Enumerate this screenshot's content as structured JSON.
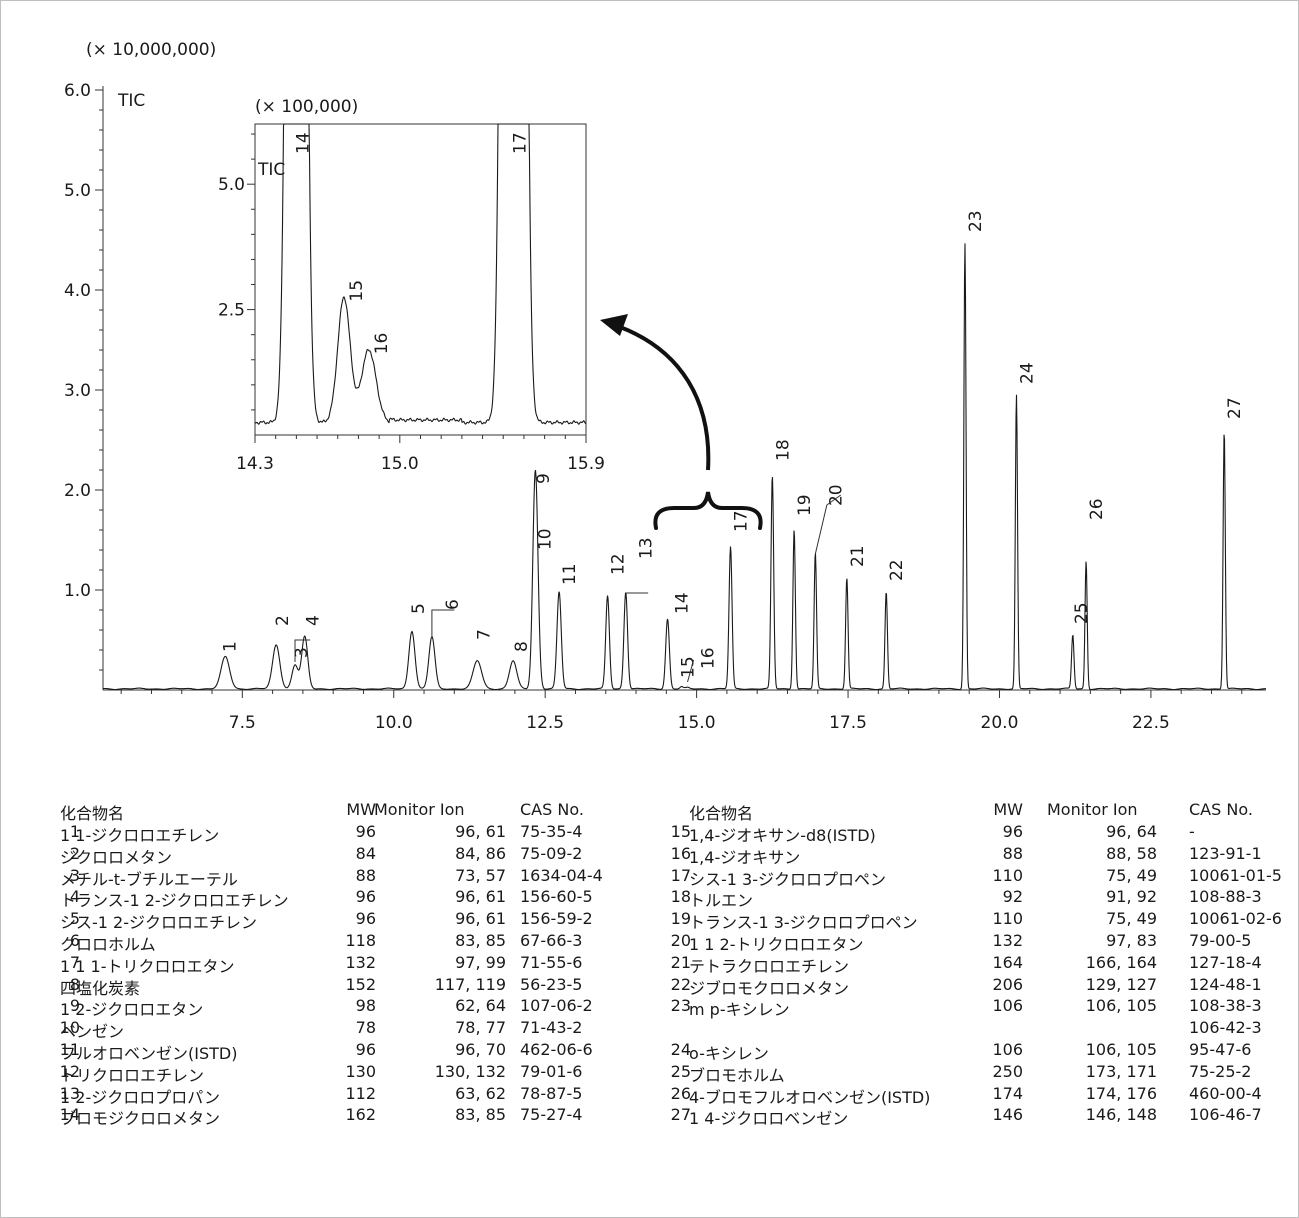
{
  "chart_data": {
    "type": "line",
    "main": {
      "y_scale_label": "(× 10,000,000)",
      "trace_label": "TIC",
      "xlim": [
        5.2,
        24.4
      ],
      "ylim": [
        0,
        6.0
      ],
      "x_ticks": [
        "7.5",
        "10.0",
        "12.5",
        "15.0",
        "17.5",
        "20.0",
        "22.5"
      ],
      "x_tick_values": [
        7.5,
        10.0,
        12.5,
        15.0,
        17.5,
        20.0,
        22.5
      ],
      "y_ticks": [
        "1.0",
        "2.0",
        "3.0",
        "4.0",
        "5.0",
        "6.0"
      ],
      "y_tick_values": [
        1.0,
        2.0,
        3.0,
        4.0,
        5.0,
        6.0
      ],
      "peaks": [
        {
          "label": "1",
          "rt": 7.22,
          "height": 0.32,
          "width": 0.07
        },
        {
          "label": "2",
          "rt": 8.06,
          "height": 0.44,
          "width": 0.06
        },
        {
          "label": "3",
          "rt": 8.37,
          "height": 0.24,
          "width": 0.05
        },
        {
          "label": "4",
          "rt": 8.53,
          "height": 0.52,
          "width": 0.05
        },
        {
          "label": "5",
          "rt": 10.3,
          "height": 0.58,
          "width": 0.05
        },
        {
          "label": "6",
          "rt": 10.63,
          "height": 0.52,
          "width": 0.05
        },
        {
          "label": "7",
          "rt": 11.38,
          "height": 0.28,
          "width": 0.07
        },
        {
          "label": "8",
          "rt": 11.97,
          "height": 0.28,
          "width": 0.06
        },
        {
          "label": "9",
          "rt": 12.33,
          "height": 1.62,
          "width": 0.04
        },
        {
          "label": "10",
          "rt": 12.36,
          "height": 0.7,
          "width": 0.04
        },
        {
          "label": "11",
          "rt": 12.73,
          "height": 0.97,
          "width": 0.035
        },
        {
          "label": "12",
          "rt": 13.53,
          "height": 0.93,
          "width": 0.03
        },
        {
          "label": "13",
          "rt": 13.83,
          "height": 0.97,
          "width": 0.03
        },
        {
          "label": "14",
          "rt": 14.52,
          "height": 0.7,
          "width": 0.03
        },
        {
          "label": "15",
          "rt": 14.75,
          "height": 0.02,
          "width": 0.025
        },
        {
          "label": "16",
          "rt": 14.85,
          "height": 0.01,
          "width": 0.03
        },
        {
          "label": "17",
          "rt": 15.56,
          "height": 1.42,
          "width": 0.025
        },
        {
          "label": "18",
          "rt": 16.25,
          "height": 2.13,
          "width": 0.022
        },
        {
          "label": "19",
          "rt": 16.61,
          "height": 1.6,
          "width": 0.02
        },
        {
          "label": "20",
          "rt": 16.96,
          "height": 1.36,
          "width": 0.02
        },
        {
          "label": "21",
          "rt": 17.48,
          "height": 1.11,
          "width": 0.02
        },
        {
          "label": "22",
          "rt": 18.13,
          "height": 0.97,
          "width": 0.02
        },
        {
          "label": "23",
          "rt": 19.43,
          "height": 4.46,
          "width": 0.018
        },
        {
          "label": "24",
          "rt": 20.28,
          "height": 2.94,
          "width": 0.018
        },
        {
          "label": "25",
          "rt": 21.21,
          "height": 0.54,
          "width": 0.02
        },
        {
          "label": "26",
          "rt": 21.43,
          "height": 1.28,
          "width": 0.018
        },
        {
          "label": "27",
          "rt": 23.71,
          "height": 2.59,
          "width": 0.018
        }
      ]
    },
    "inset": {
      "y_scale_label": "(× 100,000)",
      "trace_label": "TIC",
      "xlim": [
        14.3,
        15.9
      ],
      "ylim": [
        0,
        6.2
      ],
      "x_ticks": [
        "14.3",
        "15.0",
        "15.9"
      ],
      "x_tick_values": [
        14.3,
        15.0,
        15.9
      ],
      "y_ticks": [
        "2.5",
        "5.0"
      ],
      "y_tick_values": [
        2.5,
        5.0
      ],
      "peaks": [
        {
          "label": "14",
          "rt": 14.5,
          "height": 70,
          "width": 0.028
        },
        {
          "label": "15",
          "rt": 14.73,
          "height": 2.5,
          "width": 0.03
        },
        {
          "label": "16",
          "rt": 14.85,
          "height": 1.45,
          "width": 0.035
        },
        {
          "label": "17",
          "rt": 15.55,
          "height": 140,
          "width": 0.03
        }
      ]
    }
  },
  "table": {
    "headers": {
      "name": "化合物名",
      "mw": "MW",
      "ion": "Monitor Ion",
      "cas": "CAS No."
    },
    "left": [
      {
        "no": "1",
        "name": "1 1-ジクロロエチレン",
        "mw": "96",
        "ion": "96, 61",
        "cas": "75-35-4"
      },
      {
        "no": "2",
        "name": "ジクロロメタン",
        "mw": "84",
        "ion": "84, 86",
        "cas": "75-09-2"
      },
      {
        "no": "3",
        "name": "メチル-t-ブチルエーテル",
        "mw": "88",
        "ion": "73, 57",
        "cas": "1634-04-4"
      },
      {
        "no": "4",
        "name": "トランス-1 2-ジクロロエチレン",
        "mw": "96",
        "ion": "96, 61",
        "cas": "156-60-5"
      },
      {
        "no": "5",
        "name": "シス-1 2-ジクロロエチレン",
        "mw": "96",
        "ion": "96, 61",
        "cas": "156-59-2"
      },
      {
        "no": "6",
        "name": "クロロホルム",
        "mw": "118",
        "ion": "83, 85",
        "cas": "67-66-3"
      },
      {
        "no": "7",
        "name": "1 1 1-トリクロロエタン",
        "mw": "132",
        "ion": "97, 99",
        "cas": "71-55-6"
      },
      {
        "no": "8",
        "name": "四塩化炭素",
        "mw": "152",
        "ion": "117, 119",
        "cas": "56-23-5"
      },
      {
        "no": "9",
        "name": "1 2-ジクロロエタン",
        "mw": "98",
        "ion": "62, 64",
        "cas": "107-06-2"
      },
      {
        "no": "10",
        "name": "ベンゼン",
        "mw": "78",
        "ion": "78, 77",
        "cas": "71-43-2"
      },
      {
        "no": "11",
        "name": "フルオロベンゼン(ISTD)",
        "mw": "96",
        "ion": "96, 70",
        "cas": "462-06-6"
      },
      {
        "no": "12",
        "name": "トリクロロエチレン",
        "mw": "130",
        "ion": "130, 132",
        "cas": "79-01-6"
      },
      {
        "no": "13",
        "name": "1 2-ジクロロプロパン",
        "mw": "112",
        "ion": "63, 62",
        "cas": "78-87-5"
      },
      {
        "no": "14",
        "name": "ブロモジクロロメタン",
        "mw": "162",
        "ion": "83, 85",
        "cas": "75-27-4"
      }
    ],
    "right": [
      {
        "no": "15",
        "name": "1,4-ジオキサン-d8(ISTD)",
        "mw": "96",
        "ion": "96, 64",
        "cas": "-"
      },
      {
        "no": "16",
        "name": "1,4-ジオキサン",
        "mw": "88",
        "ion": "88, 58",
        "cas": "123-91-1"
      },
      {
        "no": "17",
        "name": "シス-1 3-ジクロロプロペン",
        "mw": "110",
        "ion": "75, 49",
        "cas": "10061-01-5"
      },
      {
        "no": "18",
        "name": "トルエン",
        "mw": "92",
        "ion": "91, 92",
        "cas": "108-88-3"
      },
      {
        "no": "19",
        "name": "トランス-1 3-ジクロロプロペン",
        "mw": "110",
        "ion": "75, 49",
        "cas": "10061-02-6"
      },
      {
        "no": "20",
        "name": "1 1 2-トリクロロエタン",
        "mw": "132",
        "ion": "97, 83",
        "cas": "79-00-5"
      },
      {
        "no": "21",
        "name": "テトラクロロエチレン",
        "mw": "164",
        "ion": "166, 164",
        "cas": "127-18-4"
      },
      {
        "no": "22",
        "name": "ジブロモクロロメタン",
        "mw": "206",
        "ion": "129, 127",
        "cas": "124-48-1"
      },
      {
        "no": "23",
        "name": "m p-キシレン",
        "mw": "106",
        "ion": "106, 105",
        "cas": "108-38-3"
      },
      {
        "no": "",
        "name": "",
        "mw": "",
        "ion": "",
        "cas": "106-42-3"
      },
      {
        "no": "24",
        "name": "o-キシレン",
        "mw": "106",
        "ion": "106, 105",
        "cas": "95-47-6"
      },
      {
        "no": "25",
        "name": "ブロモホルム",
        "mw": "250",
        "ion": "173, 171",
        "cas": "75-25-2"
      },
      {
        "no": "26",
        "name": "4-ブロモフルオロベンゼン(ISTD)",
        "mw": "174",
        "ion": "174, 176",
        "cas": "460-00-4"
      },
      {
        "no": "27",
        "name": "1 4-ジクロロベンゼン",
        "mw": "146",
        "ion": "146, 148",
        "cas": "106-46-7"
      }
    ]
  }
}
